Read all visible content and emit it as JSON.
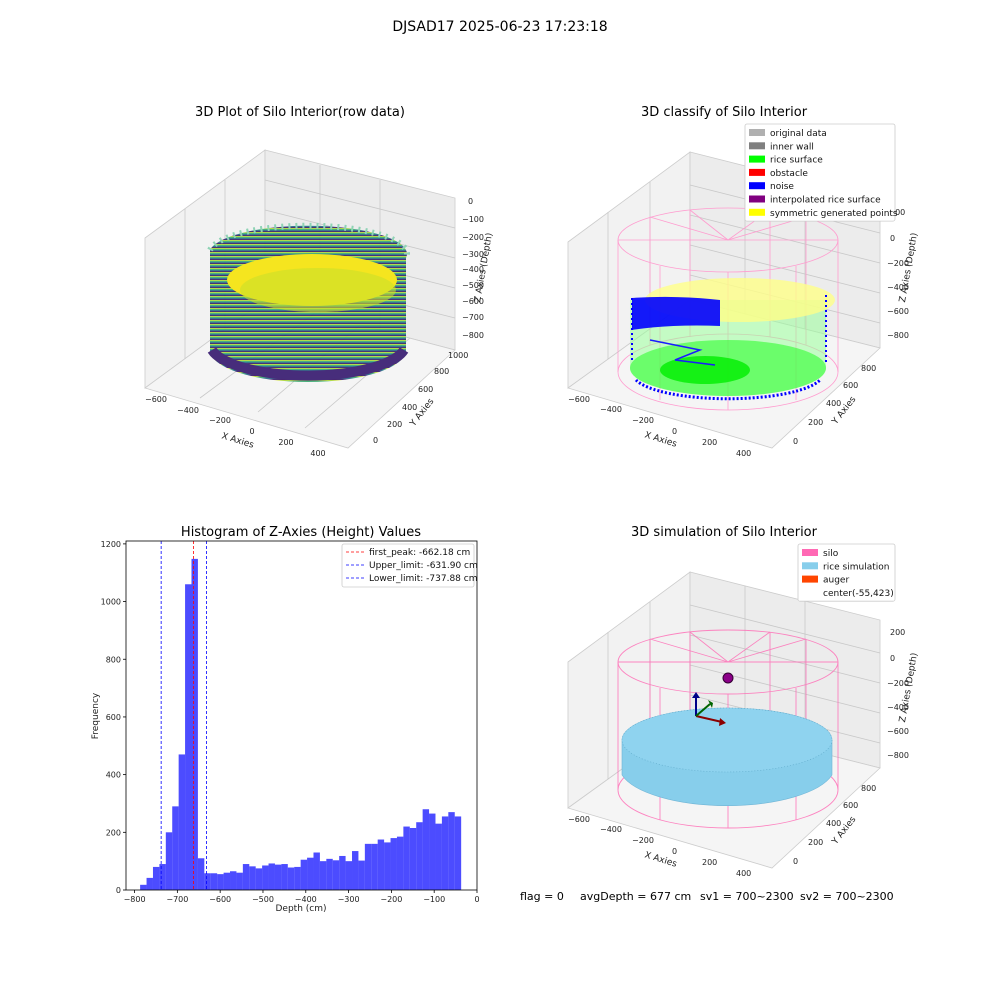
{
  "figure": {
    "suptitle": "DJSAD17 2025-06-23 17:23:18",
    "footer": {
      "flag": "flag = 0",
      "avg_depth": "avgDepth = 677 cm",
      "sv1": "sv1 = 700~2300",
      "sv2": "sv2 = 700~2300"
    }
  },
  "panels": {
    "raw": {
      "title": "3D Plot of Silo Interior(row data)",
      "xlabel": "X Axies",
      "ylabel": "Y Axies",
      "zlabel": "Z Axies (Depth)",
      "x_ticks": [
        "−600",
        "−400",
        "−200",
        "0",
        "200",
        "400"
      ],
      "y_ticks": [
        "0",
        "200",
        "400",
        "600",
        "800",
        "1000"
      ],
      "z_ticks": [
        "0",
        "−100",
        "−200",
        "−300",
        "−400",
        "−500",
        "−600",
        "−700",
        "−800"
      ],
      "colormap": "viridis"
    },
    "classify": {
      "title": "3D classify of Silo Interior",
      "xlabel": "X Axies",
      "ylabel": "Y Axies",
      "zlabel": "Z Axies (Depth)",
      "x_ticks": [
        "−600",
        "−400",
        "−200",
        "0",
        "200",
        "400"
      ],
      "y_ticks": [
        "0",
        "200",
        "400",
        "600",
        "800"
      ],
      "z_ticks": [
        "200",
        "0",
        "−200",
        "−400",
        "−600",
        "−800"
      ],
      "legend": [
        {
          "label": "original data",
          "color": "#b0b0b0"
        },
        {
          "label": "inner wall",
          "color": "#808080"
        },
        {
          "label": "rice surface",
          "color": "#00ff00"
        },
        {
          "label": "obstacle",
          "color": "#ff0000"
        },
        {
          "label": "noise",
          "color": "#0000ff"
        },
        {
          "label": "interpolated rice surface",
          "color": "#800080"
        },
        {
          "label": "symmetric generated points",
          "color": "#ffff00"
        }
      ]
    },
    "simulation": {
      "title": "3D simulation of Silo Interior",
      "xlabel": "X Axies",
      "ylabel": "Y Axies",
      "zlabel": "Z Axies (Depth)",
      "x_ticks": [
        "−600",
        "−400",
        "−200",
        "0",
        "200",
        "400"
      ],
      "y_ticks": [
        "0",
        "200",
        "400",
        "600",
        "800"
      ],
      "z_ticks": [
        "200",
        "0",
        "−200",
        "−400",
        "−600",
        "−800"
      ],
      "legend": [
        {
          "label": "silo",
          "color": "#ff69b4"
        },
        {
          "label": "rice simulation",
          "color": "#87ceeb"
        },
        {
          "label": "auger",
          "color": "#ff4500"
        },
        {
          "label": "center(-55,423)",
          "color": ""
        }
      ]
    }
  },
  "chart_data": {
    "type": "bar",
    "title": "Histogram of Z-Axies (Height) Values",
    "xlabel": "Depth (cm)",
    "ylabel": "Frequency",
    "xlim": [
      -820,
      0
    ],
    "ylim": [
      0,
      1210
    ],
    "x_ticks": [
      -800,
      -700,
      -600,
      -500,
      -400,
      -300,
      -200,
      -100,
      0
    ],
    "y_ticks": [
      0,
      200,
      400,
      600,
      800,
      1000,
      1200
    ],
    "bar_color": "#0000ff",
    "bin_edges": [
      -787,
      -772,
      -757,
      -742,
      -727,
      -712,
      -697,
      -682,
      -667,
      -652,
      -637,
      -622,
      -607,
      -592,
      -577,
      -562,
      -547,
      -532,
      -517,
      -502,
      -487,
      -472,
      -457,
      -442,
      -427,
      -412,
      -397,
      -382,
      -367,
      -352,
      -337,
      -322,
      -307,
      -292,
      -277,
      -262,
      -247,
      -232,
      -217,
      -202,
      -187,
      -172,
      -157,
      -142,
      -127,
      -112,
      -97,
      -82,
      -67,
      -52,
      -37
    ],
    "counts": [
      18,
      42,
      80,
      90,
      200,
      290,
      470,
      1060,
      1148,
      110,
      58,
      58,
      55,
      60,
      65,
      60,
      90,
      82,
      75,
      85,
      92,
      88,
      90,
      78,
      80,
      105,
      112,
      130,
      100,
      108,
      103,
      118,
      100,
      135,
      102,
      160,
      160,
      175,
      165,
      180,
      185,
      220,
      215,
      235,
      280,
      265,
      230,
      255,
      270,
      255
    ],
    "vlines": [
      {
        "label": "first_peak: -662.18 cm",
        "x": -662.18,
        "color": "#ff0000"
      },
      {
        "label": "Upper_limit: -631.90 cm",
        "x": -631.9,
        "color": "#0000ff"
      },
      {
        "label": "Lower_limit: -737.88 cm",
        "x": -737.88,
        "color": "#0000ff"
      }
    ]
  }
}
